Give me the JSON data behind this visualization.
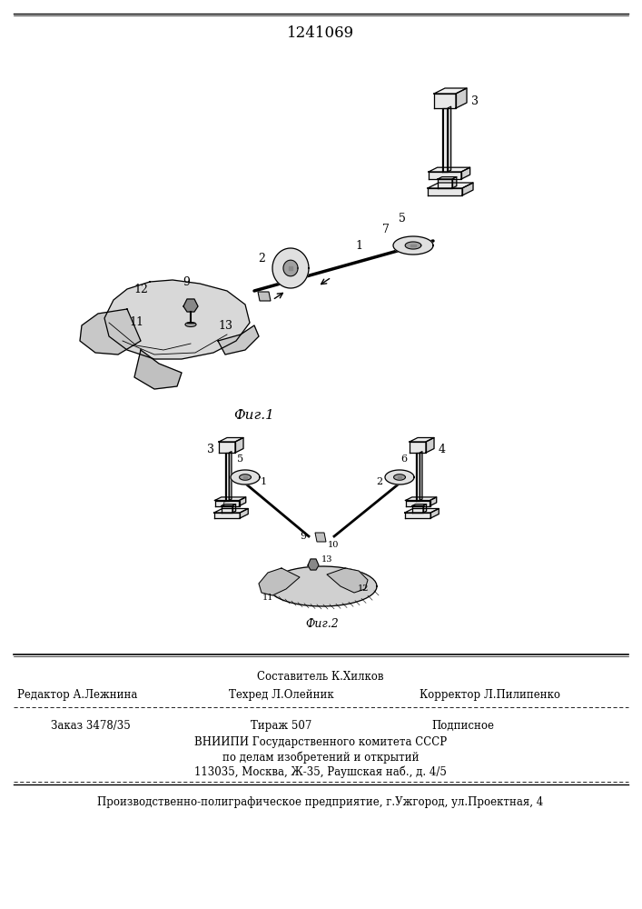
{
  "patent_number": "1241069",
  "fig1_caption": "Фиг.1",
  "fig2_caption": "Фиг.2",
  "footer_above": "Составитель К.Хилков",
  "footer_left": "Редактор А.Лежнина",
  "footer_center": "Техред Л.Олейник",
  "footer_right": "Корректор Л.Пилипенко",
  "footer_order": "Заказ 3478/35",
  "footer_copies": "Тираж 507",
  "footer_sub": "Подписное",
  "footer_org1": "ВНИИПИ Государственного комитета СССР",
  "footer_org2": "по делам изобретений и открытий",
  "footer_org3": "113035, Москва, Ж-35, Раушская наб., д. 4/5",
  "footer_bottom": "Производственно-полиграфическое предприятие, г.Ужгород, ул.Проектная, 4",
  "fig_width": 7.07,
  "fig_height": 10.0
}
